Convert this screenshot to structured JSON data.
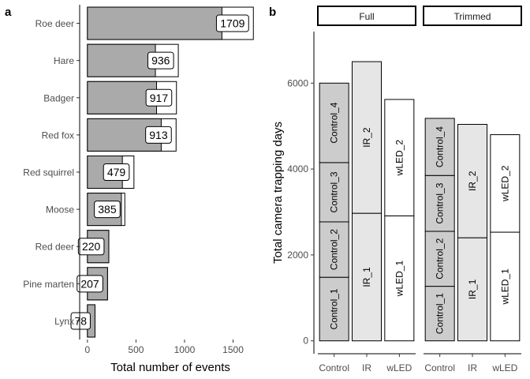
{
  "colors": {
    "grey_fill": "#aaaaaa",
    "light_fill": "#e6e6e6",
    "mid_fill": "#cccccc",
    "white_fill": "#ffffff",
    "line": "#000000",
    "axis_text": "#4d4d4d"
  },
  "chart_data": [
    {
      "panel_label": "a",
      "type": "bar",
      "orientation": "horizontal",
      "categories": [
        "Roe deer",
        "Hare",
        "Badger",
        "Red fox",
        "Red squirrel",
        "Moose",
        "Red deer",
        "Pine marten",
        "Lynx"
      ],
      "series": [
        {
          "values": [
            1385,
            700,
            712,
            760,
            360,
            350,
            220,
            207,
            78
          ]
        },
        {
          "values": [
            1709,
            936,
            917,
            913,
            479,
            385,
            220,
            207,
            78
          ]
        }
      ],
      "data_labels": [
        "1709",
        "936",
        "917",
        "913",
        "479",
        "385",
        "220",
        "207",
        "78"
      ],
      "xlabel": "Total number of events",
      "xticks": [
        0,
        500,
        1000,
        1500
      ],
      "xlim": [
        -80,
        1780
      ]
    },
    {
      "panel_label": "b",
      "type": "bar",
      "stacked": true,
      "ylabel": "Total camera trapping days",
      "yticks": [
        0,
        2000,
        4000,
        6000
      ],
      "ylim": [
        -300,
        7200
      ],
      "categories": [
        "Control",
        "IR",
        "wLED"
      ],
      "facets": [
        {
          "title": "Full",
          "stacks": [
            {
              "category": "Control",
              "segments": [
                {
                  "label": "Control_1",
                  "value": 1480
                },
                {
                  "label": "Control_2",
                  "value": 1290
                },
                {
                  "label": "Control_3",
                  "value": 1380
                },
                {
                  "label": "Control_4",
                  "value": 1850
                }
              ]
            },
            {
              "category": "IR",
              "segments": [
                {
                  "label": "IR_1",
                  "value": 2970
                },
                {
                  "label": "IR_2",
                  "value": 3530
                }
              ]
            },
            {
              "category": "wLED",
              "segments": [
                {
                  "label": "wLED_1",
                  "value": 2910
                },
                {
                  "label": "wLED_2",
                  "value": 2710
                }
              ]
            }
          ]
        },
        {
          "title": "Trimmed",
          "stacks": [
            {
              "category": "Control",
              "segments": [
                {
                  "label": "Control_1",
                  "value": 1270
                },
                {
                  "label": "Control_2",
                  "value": 1280
                },
                {
                  "label": "Control_3",
                  "value": 1300
                },
                {
                  "label": "Control_4",
                  "value": 1330
                }
              ]
            },
            {
              "category": "IR",
              "segments": [
                {
                  "label": "IR_1",
                  "value": 2400
                },
                {
                  "label": "IR_2",
                  "value": 2640
                }
              ]
            },
            {
              "category": "wLED",
              "segments": [
                {
                  "label": "wLED_1",
                  "value": 2530
                },
                {
                  "label": "wLED_2",
                  "value": 2270
                }
              ]
            }
          ]
        }
      ]
    }
  ]
}
